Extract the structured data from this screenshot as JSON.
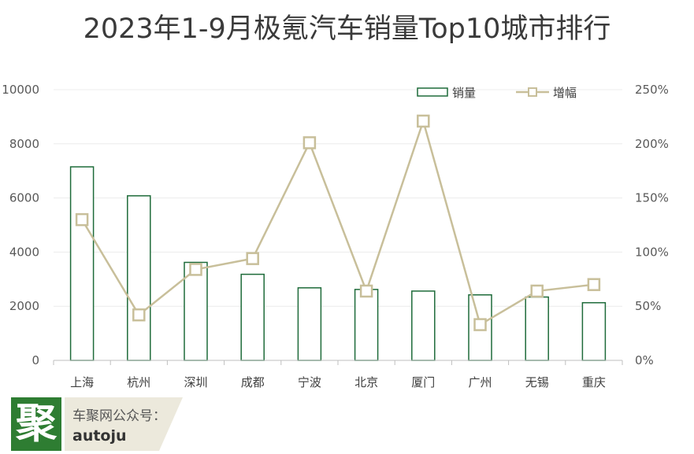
{
  "chart_data": {
    "type": "bar",
    "title": "2023年1-9月极氪汽车销量Top10城市排行",
    "categories": [
      "上海",
      "杭州",
      "深圳",
      "成都",
      "宁波",
      "北京",
      "厦门",
      "广州",
      "无锡",
      "重庆"
    ],
    "series": [
      {
        "name": "销量",
        "type": "bar",
        "axis": "left",
        "color": "#1e6b3a",
        "values": [
          7150,
          6080,
          3620,
          3180,
          2680,
          2620,
          2560,
          2420,
          2340,
          2130
        ]
      },
      {
        "name": "增幅",
        "type": "line",
        "axis": "right",
        "color": "#c8bf9a",
        "values": [
          1.3,
          0.42,
          0.84,
          0.94,
          2.01,
          0.64,
          2.21,
          0.33,
          0.64,
          0.7
        ]
      }
    ],
    "ylim_left": [
      0,
      10000
    ],
    "yticks_left": [
      "0",
      "2000",
      "4000",
      "6000",
      "8000",
      "10000"
    ],
    "ylim_right": [
      0,
      2.5
    ],
    "yticks_right": [
      "0%",
      "50%",
      "100%",
      "150%",
      "200%",
      "250%"
    ],
    "grid": true,
    "legend_position": "top-right"
  },
  "watermark": {
    "logo_char": "聚",
    "label": "车聚网公众号：",
    "account": "autoju"
  }
}
